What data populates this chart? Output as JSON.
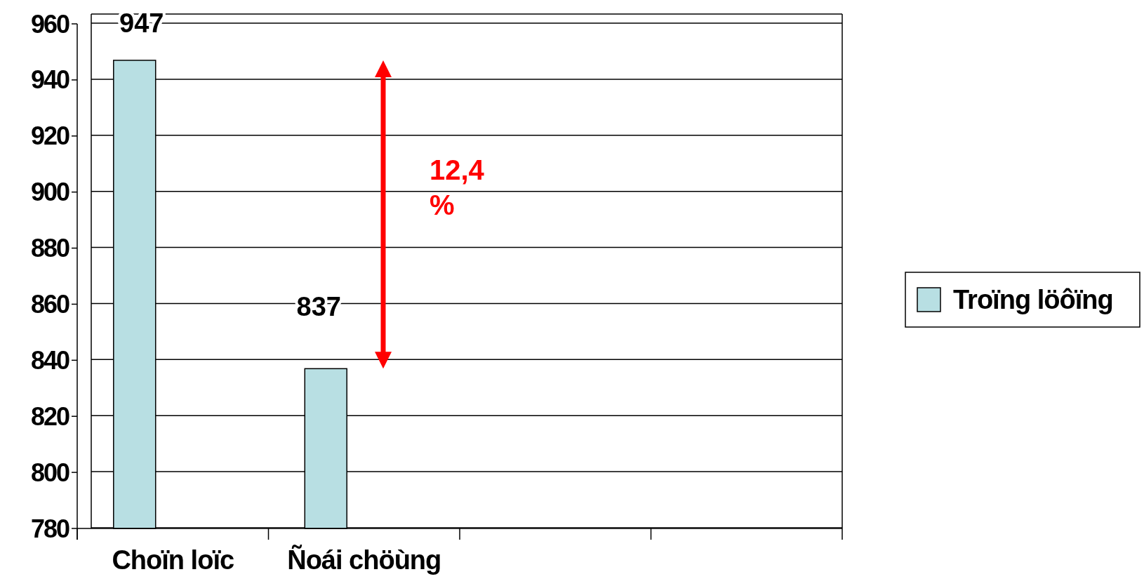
{
  "chart_data": {
    "type": "bar",
    "categories": [
      "Choïn loïc",
      "Ñoái chöùng",
      null,
      null
    ],
    "series": [
      {
        "name": "Troïng löôïng",
        "color": "#b8dfe3",
        "values": [
          947,
          837,
          null,
          null
        ]
      }
    ],
    "ylim": [
      780,
      960
    ],
    "yticks": [
      780,
      800,
      820,
      840,
      860,
      880,
      900,
      920,
      940,
      960
    ],
    "grid": "y",
    "legend": "right",
    "data_labels": true,
    "annotations": [
      "12,4 %"
    ]
  }
}
